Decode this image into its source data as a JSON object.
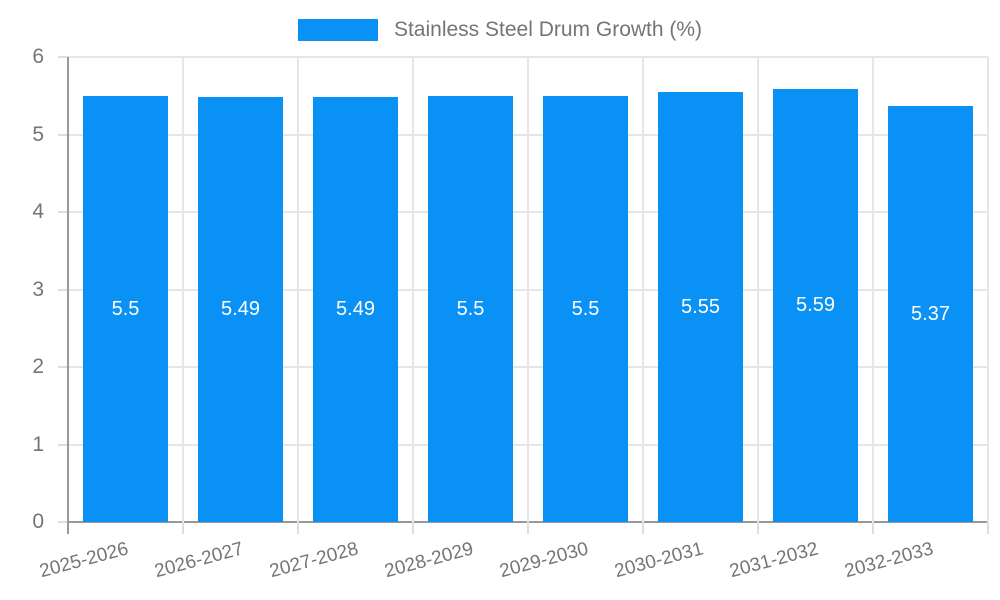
{
  "legend": {
    "label": "Stainless Steel Drum Growth (%)"
  },
  "chart_data": {
    "type": "bar",
    "title": "Stainless Steel Drum Growth (%)",
    "categories": [
      "2025-2026",
      "2026-2027",
      "2027-2028",
      "2028-2029",
      "2029-2030",
      "2030-2031",
      "2031-2032",
      "2032-2033"
    ],
    "values": [
      5.5,
      5.49,
      5.49,
      5.5,
      5.5,
      5.55,
      5.59,
      5.37
    ],
    "value_labels": [
      "5.5",
      "5.49",
      "5.49",
      "5.5",
      "5.5",
      "5.55",
      "5.59",
      "5.37"
    ],
    "series_name": "Stainless Steel Drum Growth (%)",
    "xlabel": "",
    "ylabel": "",
    "ylim": [
      0,
      6
    ],
    "yticks": [
      0,
      1,
      2,
      3,
      4,
      5,
      6
    ],
    "grid": true,
    "legend_position": "top-center",
    "colors": {
      "bar": "#0991f5",
      "grid": "#e6e6e6",
      "tick": "#dedede",
      "axis": "#999999",
      "tick_text": "#757575",
      "bar_label_text": "#ffffff",
      "background": "#ffffff"
    }
  }
}
